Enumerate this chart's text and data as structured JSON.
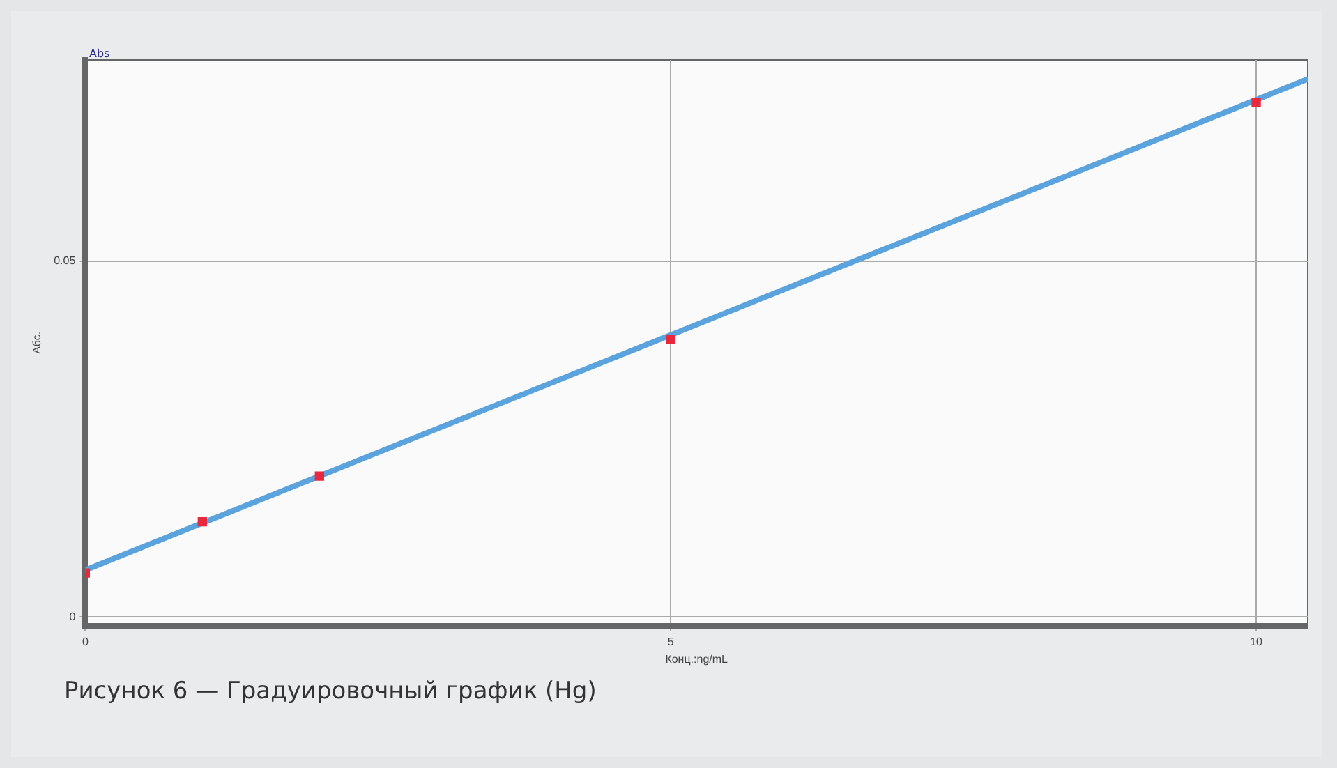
{
  "chart_data": {
    "type": "scatter",
    "title": "Рисунок 6 — Градуировочный график (Hg)",
    "xlabel": "Конц.:ng/mL",
    "ylabel": "Абс.",
    "annotations": [
      "Abs"
    ],
    "xlim": [
      0,
      10.44
    ],
    "ylim": [
      -0.0012,
      0.0783
    ],
    "xticks": [
      0,
      5,
      10
    ],
    "yticks": [
      0,
      0.05
    ],
    "grid": true,
    "legend": false,
    "marker": "square",
    "series": [
      {
        "type": "line",
        "color": "#5ba3dd",
        "x": [
          0,
          10.44
        ],
        "values": [
          0.0066,
          0.0756
        ],
        "marker": "none"
      },
      {
        "color": "#e8283c",
        "x": [
          0,
          1,
          2,
          5,
          10
        ],
        "values": [
          0.0062,
          0.0134,
          0.0198,
          0.039,
          0.0723
        ]
      }
    ]
  }
}
